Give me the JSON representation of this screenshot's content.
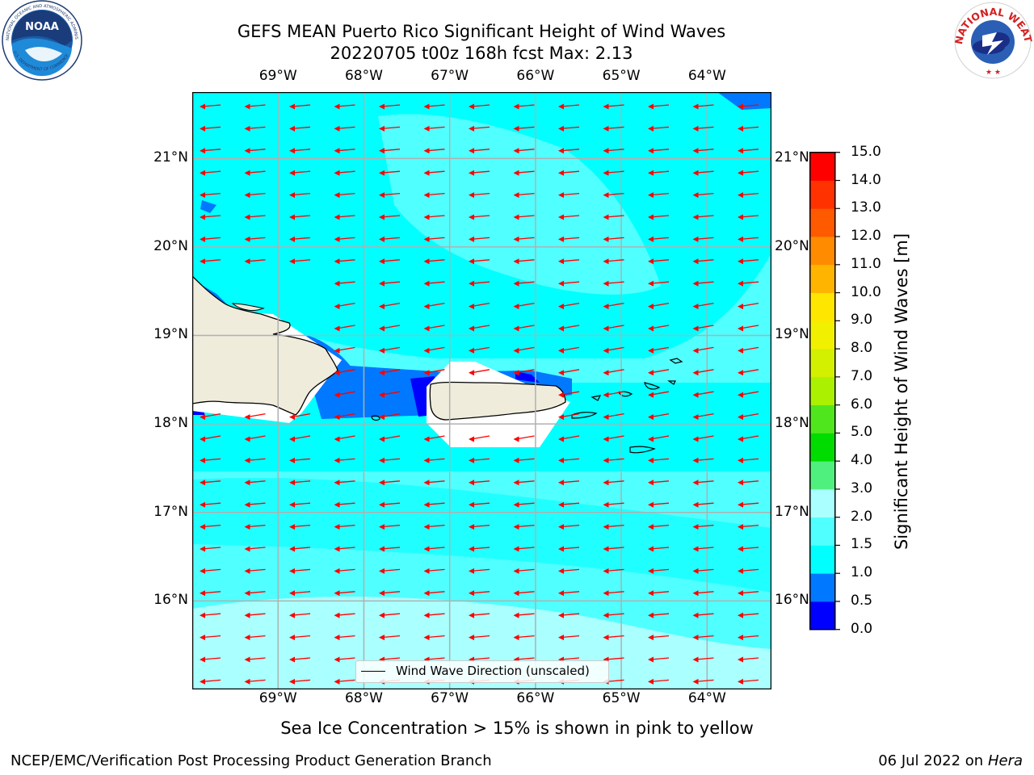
{
  "title_line1": "GEFS MEAN Puerto Rico Significant Height of Wind Waves",
  "title_line2": "20220705 t00z 168h fcst   Max: 2.13",
  "sea_ice_note": "Sea Ice Concentration > 15% is shown in pink to yellow",
  "credit_left": "NCEP/EMC/Verification Post Processing Product Generation Branch",
  "credit_right_date": "06 Jul 2022 on ",
  "credit_right_host": "Hera",
  "legend_label": "Wind Wave Direction (unscaled)",
  "colorbar_title": "Significant Height of Wind Waves [m]",
  "lon_labels": [
    "69°W",
    "68°W",
    "67°W",
    "66°W",
    "65°W",
    "64°W"
  ],
  "lat_labels": [
    "21°N",
    "20°N",
    "19°N",
    "18°N",
    "17°N",
    "16°N"
  ],
  "colorbar": {
    "ticks": [
      "15.0",
      "14.0",
      "13.0",
      "12.0",
      "11.0",
      "10.0",
      "9.0",
      "8.0",
      "7.0",
      "6.0",
      "5.0",
      "4.0",
      "3.0",
      "2.0",
      "1.5",
      "1.0",
      "0.5",
      "0.0"
    ],
    "bins": [
      {
        "from": 0.0,
        "to": 0.5,
        "color": "#0000ff"
      },
      {
        "from": 0.5,
        "to": 1.0,
        "color": "#0078ff"
      },
      {
        "from": 1.0,
        "to": 1.5,
        "color": "#00ffff"
      },
      {
        "from": 1.5,
        "to": 2.0,
        "color": "#50ffff"
      },
      {
        "from": 2.0,
        "to": 3.0,
        "color": "#aaffff"
      },
      {
        "from": 3.0,
        "to": 4.0,
        "color": "#50f07e"
      },
      {
        "from": 4.0,
        "to": 5.0,
        "color": "#00dc00"
      },
      {
        "from": 5.0,
        "to": 6.0,
        "color": "#50e61e"
      },
      {
        "from": 6.0,
        "to": 7.0,
        "color": "#aaf000"
      },
      {
        "from": 7.0,
        "to": 8.0,
        "color": "#d2f000"
      },
      {
        "from": 8.0,
        "to": 9.0,
        "color": "#f0f000"
      },
      {
        "from": 9.0,
        "to": 10.0,
        "color": "#ffe600"
      },
      {
        "from": 10.0,
        "to": 11.0,
        "color": "#ffb400"
      },
      {
        "from": 11.0,
        "to": 12.0,
        "color": "#ff8c00"
      },
      {
        "from": 12.0,
        "to": 13.0,
        "color": "#ff5a00"
      },
      {
        "from": 13.0,
        "to": 14.0,
        "color": "#ff3200"
      },
      {
        "from": 14.0,
        "to": 15.0,
        "color": "#ff0000"
      }
    ]
  },
  "map": {
    "lon_range": [
      -70.0,
      -63.25
    ],
    "lat_range": [
      15.0,
      21.75
    ],
    "arrow_color": "#ff0000",
    "land_color": "#efecdc",
    "wave_direction": "westward"
  },
  "logos": {
    "left": "noaa-logo",
    "left_text": "NOAA",
    "right": "nws-logo",
    "right_text": "NATIONAL WEATHER SERVICE"
  }
}
